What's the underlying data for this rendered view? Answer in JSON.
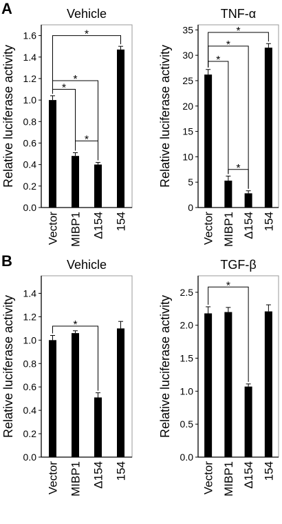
{
  "panels": [
    {
      "letter": "A"
    },
    {
      "letter": "B"
    }
  ],
  "chart_data": [
    {
      "type": "bar",
      "panel": "A",
      "title": "Vehicle",
      "ylabel": "Relative luciferase activity",
      "xlabel": "",
      "categories": [
        "Vector",
        "MIBP1",
        "Δ154",
        "154"
      ],
      "values": [
        1.0,
        0.48,
        0.4,
        1.47
      ],
      "errors": [
        0.04,
        0.03,
        0.02,
        0.03
      ],
      "ylim": [
        0,
        1.7
      ],
      "yticks": [
        "0.0",
        "0.2",
        "0.4",
        "0.6",
        "0.8",
        "1.0",
        "1.2",
        "1.4",
        "1.6"
      ],
      "ytick_values": [
        0,
        0.2,
        0.4,
        0.6,
        0.8,
        1.0,
        1.2,
        1.4,
        1.6
      ],
      "significance": [
        {
          "from": 0,
          "to": 3,
          "y": 1.6,
          "label": "*"
        },
        {
          "from": 0,
          "to": 2,
          "y": 1.18,
          "label": "*"
        },
        {
          "from": 0,
          "to": 1,
          "y": 1.1,
          "label": "*"
        },
        {
          "from": 1,
          "to": 2,
          "y": 0.62,
          "label": "*"
        }
      ]
    },
    {
      "type": "bar",
      "panel": "A",
      "title": "TNF-α",
      "ylabel": "Relative luciferase activity",
      "xlabel": "",
      "categories": [
        "Vector",
        "MIBP1",
        "Δ154",
        "154"
      ],
      "values": [
        26.2,
        5.3,
        2.8,
        31.5
      ],
      "errors": [
        1.0,
        0.9,
        0.5,
        0.8
      ],
      "ylim": [
        0,
        36
      ],
      "yticks": [
        "0",
        "5",
        "10",
        "15",
        "20",
        "25",
        "30",
        "35"
      ],
      "ytick_values": [
        0,
        5,
        10,
        15,
        20,
        25,
        30,
        35
      ],
      "significance": [
        {
          "from": 0,
          "to": 3,
          "y": 34.5,
          "label": "*"
        },
        {
          "from": 0,
          "to": 2,
          "y": 31.8,
          "label": "*"
        },
        {
          "from": 0,
          "to": 1,
          "y": 28.8,
          "label": "*"
        },
        {
          "from": 1,
          "to": 2,
          "y": 7.5,
          "label": "*"
        }
      ]
    },
    {
      "type": "bar",
      "panel": "B",
      "title": "Vehicle",
      "ylabel": "Relative luciferase activity",
      "xlabel": "",
      "categories": [
        "Vector",
        "MIBP1",
        "Δ154",
        "154"
      ],
      "values": [
        1.0,
        1.06,
        0.51,
        1.1
      ],
      "errors": [
        0.04,
        0.02,
        0.04,
        0.06
      ],
      "ylim": [
        0,
        1.55
      ],
      "yticks": [
        "0.0",
        "0.2",
        "0.4",
        "0.6",
        "0.8",
        "1.0",
        "1.2",
        "1.4"
      ],
      "ytick_values": [
        0,
        0.2,
        0.4,
        0.6,
        0.8,
        1.0,
        1.2,
        1.4
      ],
      "significance": [
        {
          "from": 0,
          "to": 2,
          "y": 1.12,
          "label": "*"
        }
      ]
    },
    {
      "type": "bar",
      "panel": "B",
      "title": "TGF-β",
      "ylabel": "Relative luciferase activity",
      "xlabel": "",
      "categories": [
        "Vector",
        "MIBP1",
        "Δ154",
        "154"
      ],
      "values": [
        2.18,
        2.2,
        1.07,
        2.21
      ],
      "errors": [
        0.1,
        0.07,
        0.04,
        0.1
      ],
      "ylim": [
        0,
        2.75
      ],
      "yticks": [
        "0.0",
        "0.5",
        "1.0",
        "1.5",
        "2.0",
        "2.5"
      ],
      "ytick_values": [
        0,
        0.5,
        1.0,
        1.5,
        2.0,
        2.5
      ],
      "significance": [
        {
          "from": 0,
          "to": 2,
          "y": 2.58,
          "label": "*"
        }
      ]
    }
  ]
}
